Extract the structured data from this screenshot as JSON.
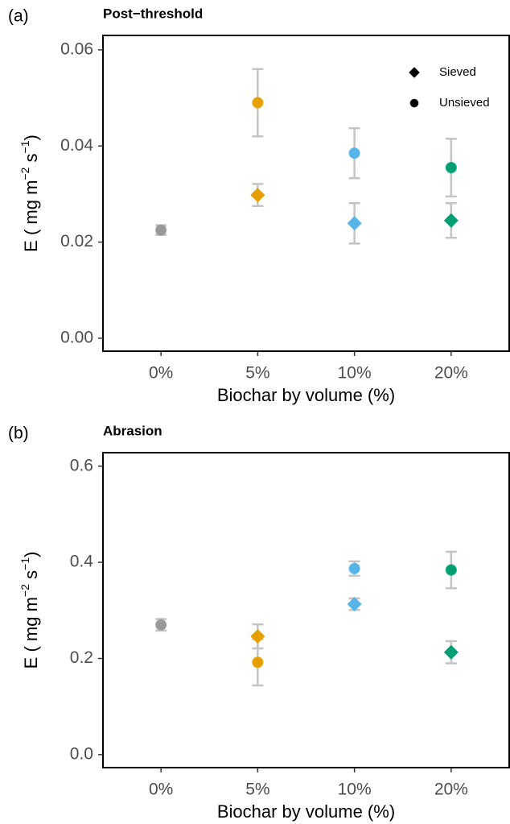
{
  "chart_data": [
    {
      "type": "scatter",
      "panel_label": "(a)",
      "title": "Post−threshold",
      "xlabel": "Biochar by volume (%)",
      "ylabel_parts": [
        "E ( mg m",
        "−2",
        " s",
        "−1",
        ")"
      ],
      "categories": [
        "0%",
        "5%",
        "10%",
        "20%"
      ],
      "point_colors": [
        "#999999",
        "#E69F00",
        "#56B4E9",
        "#009E73"
      ],
      "error_color": "#c4c4c4",
      "ylim": [
        -0.0027,
        0.063
      ],
      "yticks": [
        {
          "value": 0,
          "label": "0.00"
        },
        {
          "value": 0.02,
          "label": "0.02"
        },
        {
          "value": 0.04,
          "label": "0.04"
        },
        {
          "value": 0.06,
          "label": "0.06"
        }
      ],
      "legend": "top-right",
      "legend_color": "#000000",
      "series": [
        {
          "name": "Sieved",
          "shape": "diamond",
          "values": [
            null,
            0.0298,
            0.0239,
            0.0245
          ],
          "errors": [
            null,
            0.0023,
            0.0042,
            0.0036
          ]
        },
        {
          "name": "Unsieved",
          "shape": "circle",
          "values": [
            0.0225,
            0.049,
            0.0385,
            0.0355
          ],
          "errors": [
            0.001,
            0.007,
            0.0052,
            0.006
          ]
        }
      ]
    },
    {
      "type": "scatter",
      "panel_label": "(b)",
      "title": "Abrasion",
      "xlabel": "Biochar by volume (%)",
      "ylabel_parts": [
        "E ( mg m",
        "−2",
        " s",
        "−1",
        ")"
      ],
      "categories": [
        "0%",
        "5%",
        "10%",
        "20%"
      ],
      "point_colors": [
        "#999999",
        "#E69F00",
        "#56B4E9",
        "#009E73"
      ],
      "error_color": "#c4c4c4",
      "ylim": [
        -0.027,
        0.628
      ],
      "yticks": [
        {
          "value": 0,
          "label": "0.0"
        },
        {
          "value": 0.2,
          "label": "0.2"
        },
        {
          "value": 0.4,
          "label": "0.4"
        },
        {
          "value": 0.6,
          "label": "0.6"
        }
      ],
      "series": [
        {
          "shape": "diamond",
          "values": [
            null,
            0.246,
            0.313,
            0.213
          ],
          "errors": [
            null,
            0.025,
            0.012,
            0.023
          ]
        },
        {
          "shape": "circle",
          "values": [
            0.27,
            0.192,
            0.387,
            0.384
          ],
          "errors": [
            0.012,
            0.048,
            0.015,
            0.038
          ]
        }
      ]
    }
  ]
}
